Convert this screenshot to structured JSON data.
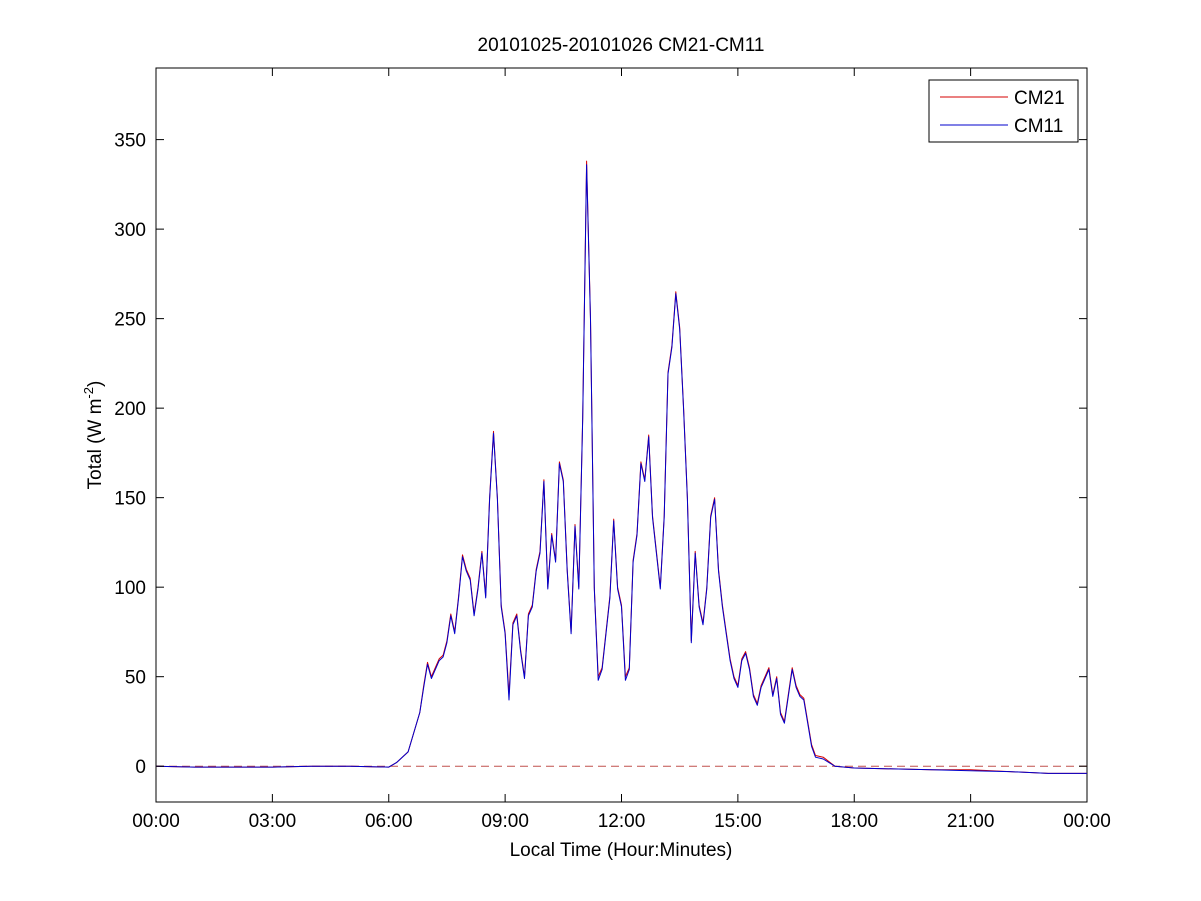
{
  "chart_data": {
    "type": "line",
    "title": "20101025-20101026 CM21-CM11",
    "xlabel": "Local Time (Hour:Minutes)",
    "ylabel": "Total (W m",
    "ylabel_sup": "-2",
    "ylabel_tail": ")",
    "xlim": [
      0,
      24
    ],
    "ylim": [
      -20,
      390
    ],
    "x_ticks": [
      0,
      3,
      6,
      9,
      12,
      15,
      18,
      21,
      24
    ],
    "x_tick_labels": [
      "00:00",
      "03:00",
      "06:00",
      "09:00",
      "12:00",
      "15:00",
      "18:00",
      "21:00",
      "00:00"
    ],
    "y_ticks": [
      0,
      50,
      100,
      150,
      200,
      250,
      300,
      350
    ],
    "y_tick_labels": [
      "0",
      "50",
      "100",
      "150",
      "200",
      "250",
      "300",
      "350"
    ],
    "grid": false,
    "legend_position": "top-right",
    "reference_line": {
      "y": 0,
      "style": "dashed",
      "color": "#c0504d"
    },
    "series": [
      {
        "name": "CM21",
        "color": "#d40000",
        "x": [
          0,
          1,
          2,
          3,
          4,
          5,
          6,
          6.2,
          6.5,
          6.8,
          6.9,
          7.0,
          7.1,
          7.2,
          7.3,
          7.4,
          7.5,
          7.6,
          7.7,
          7.8,
          7.9,
          8.0,
          8.1,
          8.2,
          8.3,
          8.4,
          8.5,
          8.6,
          8.7,
          8.8,
          8.9,
          9.0,
          9.1,
          9.2,
          9.3,
          9.4,
          9.5,
          9.6,
          9.7,
          9.8,
          9.9,
          10.0,
          10.1,
          10.2,
          10.3,
          10.4,
          10.5,
          10.6,
          10.7,
          10.8,
          10.9,
          11.0,
          11.1,
          11.2,
          11.3,
          11.4,
          11.5,
          11.6,
          11.7,
          11.8,
          11.9,
          12.0,
          12.1,
          12.2,
          12.3,
          12.4,
          12.5,
          12.6,
          12.7,
          12.8,
          12.9,
          13.0,
          13.1,
          13.2,
          13.3,
          13.4,
          13.5,
          13.6,
          13.7,
          13.8,
          13.9,
          14.0,
          14.1,
          14.2,
          14.3,
          14.4,
          14.5,
          14.6,
          14.7,
          14.8,
          14.9,
          15.0,
          15.1,
          15.2,
          15.3,
          15.4,
          15.5,
          15.6,
          15.7,
          15.8,
          15.9,
          16.0,
          16.1,
          16.2,
          16.3,
          16.4,
          16.5,
          16.6,
          16.7,
          16.8,
          16.9,
          17.0,
          17.2,
          17.5,
          18,
          19,
          20,
          21,
          22,
          23,
          24
        ],
        "y": [
          0,
          -0.5,
          -0.5,
          -0.5,
          0,
          0,
          -0.5,
          2,
          8,
          30,
          45,
          58,
          50,
          55,
          60,
          62,
          70,
          85,
          75,
          95,
          118,
          110,
          105,
          85,
          100,
          120,
          95,
          150,
          187,
          150,
          90,
          75,
          40,
          80,
          85,
          65,
          50,
          85,
          90,
          110,
          120,
          160,
          100,
          130,
          115,
          170,
          160,
          110,
          75,
          135,
          100,
          195,
          338,
          250,
          100,
          50,
          55,
          75,
          95,
          138,
          100,
          90,
          50,
          55,
          115,
          130,
          170,
          160,
          185,
          140,
          120,
          100,
          140,
          220,
          235,
          265,
          245,
          200,
          150,
          70,
          120,
          90,
          80,
          100,
          140,
          150,
          110,
          90,
          75,
          60,
          50,
          45,
          60,
          64,
          55,
          40,
          35,
          45,
          50,
          55,
          40,
          50,
          30,
          25,
          40,
          55,
          45,
          40,
          38,
          25,
          12,
          6,
          5,
          0,
          -1,
          -1.5,
          -2,
          -2,
          -3,
          -4,
          -4
        ]
      },
      {
        "name": "CM11",
        "color": "#0000cc",
        "x": [
          0,
          1,
          2,
          3,
          4,
          5,
          6,
          6.2,
          6.5,
          6.8,
          6.9,
          7.0,
          7.1,
          7.2,
          7.3,
          7.4,
          7.5,
          7.6,
          7.7,
          7.8,
          7.9,
          8.0,
          8.1,
          8.2,
          8.3,
          8.4,
          8.5,
          8.6,
          8.7,
          8.8,
          8.9,
          9.0,
          9.1,
          9.2,
          9.3,
          9.4,
          9.5,
          9.6,
          9.7,
          9.8,
          9.9,
          10.0,
          10.1,
          10.2,
          10.3,
          10.4,
          10.5,
          10.6,
          10.7,
          10.8,
          10.9,
          11.0,
          11.1,
          11.2,
          11.3,
          11.4,
          11.5,
          11.6,
          11.7,
          11.8,
          11.9,
          12.0,
          12.1,
          12.2,
          12.3,
          12.4,
          12.5,
          12.6,
          12.7,
          12.8,
          12.9,
          13.0,
          13.1,
          13.2,
          13.3,
          13.4,
          13.5,
          13.6,
          13.7,
          13.8,
          13.9,
          14.0,
          14.1,
          14.2,
          14.3,
          14.4,
          14.5,
          14.6,
          14.7,
          14.8,
          14.9,
          15.0,
          15.1,
          15.2,
          15.3,
          15.4,
          15.5,
          15.6,
          15.7,
          15.8,
          15.9,
          16.0,
          16.1,
          16.2,
          16.3,
          16.4,
          16.5,
          16.6,
          16.7,
          16.8,
          16.9,
          17.0,
          17.2,
          17.5,
          18,
          19,
          20,
          21,
          22,
          23,
          24
        ],
        "y": [
          0,
          -0.5,
          -0.5,
          -0.5,
          0,
          0,
          -0.5,
          2,
          8,
          30,
          44,
          57,
          49,
          54,
          59,
          61,
          69,
          84,
          74,
          94,
          117,
          109,
          104,
          84,
          99,
          119,
          94,
          149,
          186,
          149,
          89,
          74,
          37,
          79,
          84,
          64,
          49,
          84,
          89,
          109,
          119,
          159,
          99,
          129,
          114,
          169,
          159,
          109,
          74,
          134,
          99,
          194,
          336,
          249,
          99,
          48,
          54,
          74,
          94,
          137,
          99,
          89,
          48,
          54,
          114,
          129,
          169,
          159,
          184,
          139,
          119,
          99,
          139,
          219,
          234,
          264,
          244,
          199,
          149,
          69,
          119,
          89,
          79,
          99,
          139,
          149,
          109,
          89,
          74,
          59,
          49,
          44,
          59,
          63,
          54,
          39,
          34,
          44,
          49,
          54,
          39,
          49,
          29,
          24,
          39,
          54,
          44,
          39,
          37,
          24,
          11,
          5,
          4,
          0,
          -1,
          -1.5,
          -2,
          -2.5,
          -3,
          -4,
          -4
        ]
      }
    ]
  }
}
